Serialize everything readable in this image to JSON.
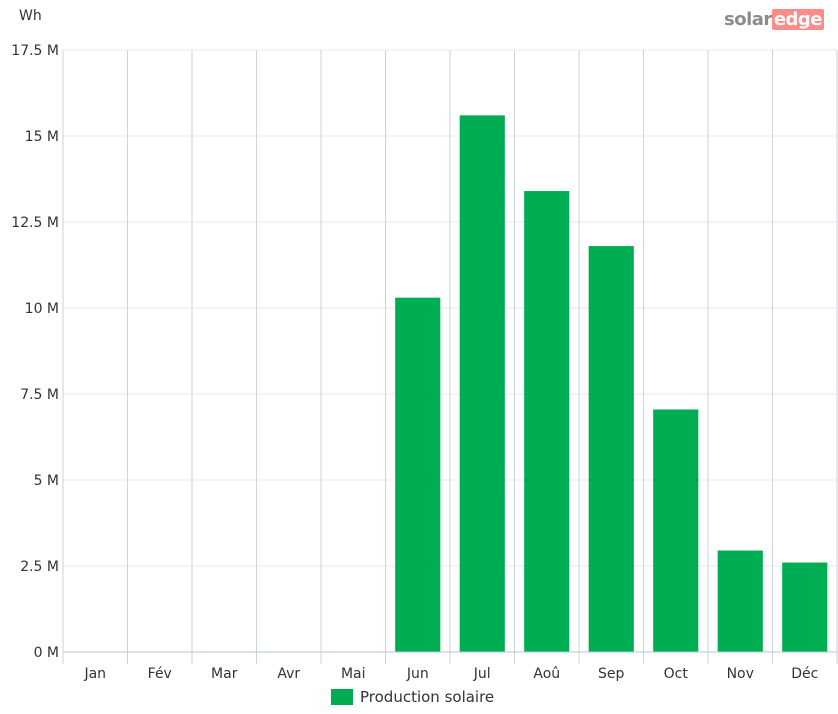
{
  "chart_data": {
    "type": "bar",
    "unit_label": "Wh",
    "categories": [
      "Jan",
      "Fév",
      "Mar",
      "Avr",
      "Mai",
      "Jun",
      "Jul",
      "Aoû",
      "Sep",
      "Oct",
      "Nov",
      "Déc"
    ],
    "series": [
      {
        "name": "Production solaire",
        "values": [
          0,
          0,
          0,
          0,
          0,
          10300000,
          15600000,
          13400000,
          11800000,
          7050000,
          2950000,
          2600000
        ]
      }
    ],
    "y_ticks": [
      0,
      2500000,
      5000000,
      7500000,
      10000000,
      12500000,
      15000000,
      17500000
    ],
    "y_tick_labels": [
      "0 M",
      "2.5 M",
      "5 M",
      "7.5 M",
      "10 M",
      "12.5 M",
      "15 M",
      "17.5 M"
    ],
    "ylim": [
      0,
      17500000
    ],
    "grid": true,
    "legend_position": "bottom",
    "bar_color": "#00ad52"
  },
  "brand": {
    "part1": "solar",
    "part2": "edge"
  }
}
